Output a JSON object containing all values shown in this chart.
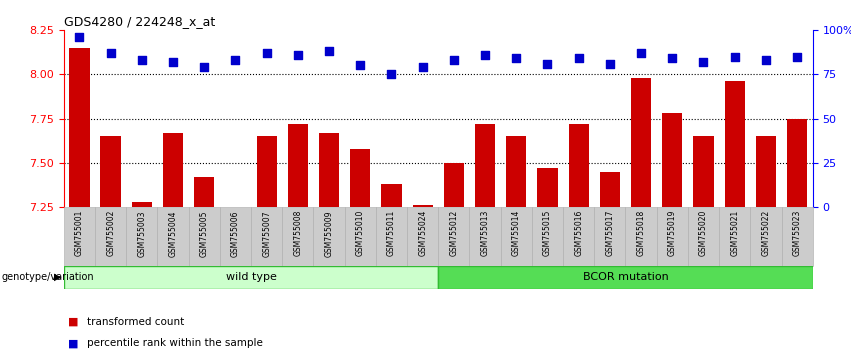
{
  "title": "GDS4280 / 224248_x_at",
  "samples": [
    "GSM755001",
    "GSM755002",
    "GSM755003",
    "GSM755004",
    "GSM755005",
    "GSM755006",
    "GSM755007",
    "GSM755008",
    "GSM755009",
    "GSM755010",
    "GSM755011",
    "GSM755024",
    "GSM755012",
    "GSM755013",
    "GSM755014",
    "GSM755015",
    "GSM755016",
    "GSM755017",
    "GSM755018",
    "GSM755019",
    "GSM755020",
    "GSM755021",
    "GSM755022",
    "GSM755023"
  ],
  "bar_values": [
    8.15,
    7.65,
    7.28,
    7.67,
    7.42,
    7.25,
    7.65,
    7.72,
    7.67,
    7.58,
    7.38,
    7.26,
    7.5,
    7.72,
    7.65,
    7.47,
    7.72,
    7.45,
    7.98,
    7.78,
    7.65,
    7.96,
    7.65,
    7.75
  ],
  "percentile_values": [
    96,
    87,
    83,
    82,
    79,
    83,
    87,
    86,
    88,
    80,
    75,
    79,
    83,
    86,
    84,
    81,
    84,
    81,
    87,
    84,
    82,
    85,
    83,
    85
  ],
  "bar_color": "#cc0000",
  "percentile_color": "#0000cc",
  "ylim_lo": 7.25,
  "ylim_hi": 8.25,
  "y2lim_lo": 0,
  "y2lim_hi": 100,
  "yticks": [
    7.25,
    7.5,
    7.75,
    8.0,
    8.25
  ],
  "y2ticks": [
    0,
    25,
    50,
    75,
    100
  ],
  "y2ticklabels": [
    "0",
    "25",
    "50",
    "75",
    "100%"
  ],
  "grid_values": [
    7.5,
    7.75,
    8.0
  ],
  "wild_type_count": 12,
  "wild_type_label": "wild type",
  "bcor_label": "BCOR mutation",
  "genotype_label": "genotype/variation",
  "legend_bar_label": "transformed count",
  "legend_dot_label": "percentile rank within the sample",
  "wild_type_color": "#ccffcc",
  "bcor_color": "#55dd55",
  "header_bg": "#cccccc",
  "percentile_marker_size": 36,
  "bar_bottom": 7.25
}
